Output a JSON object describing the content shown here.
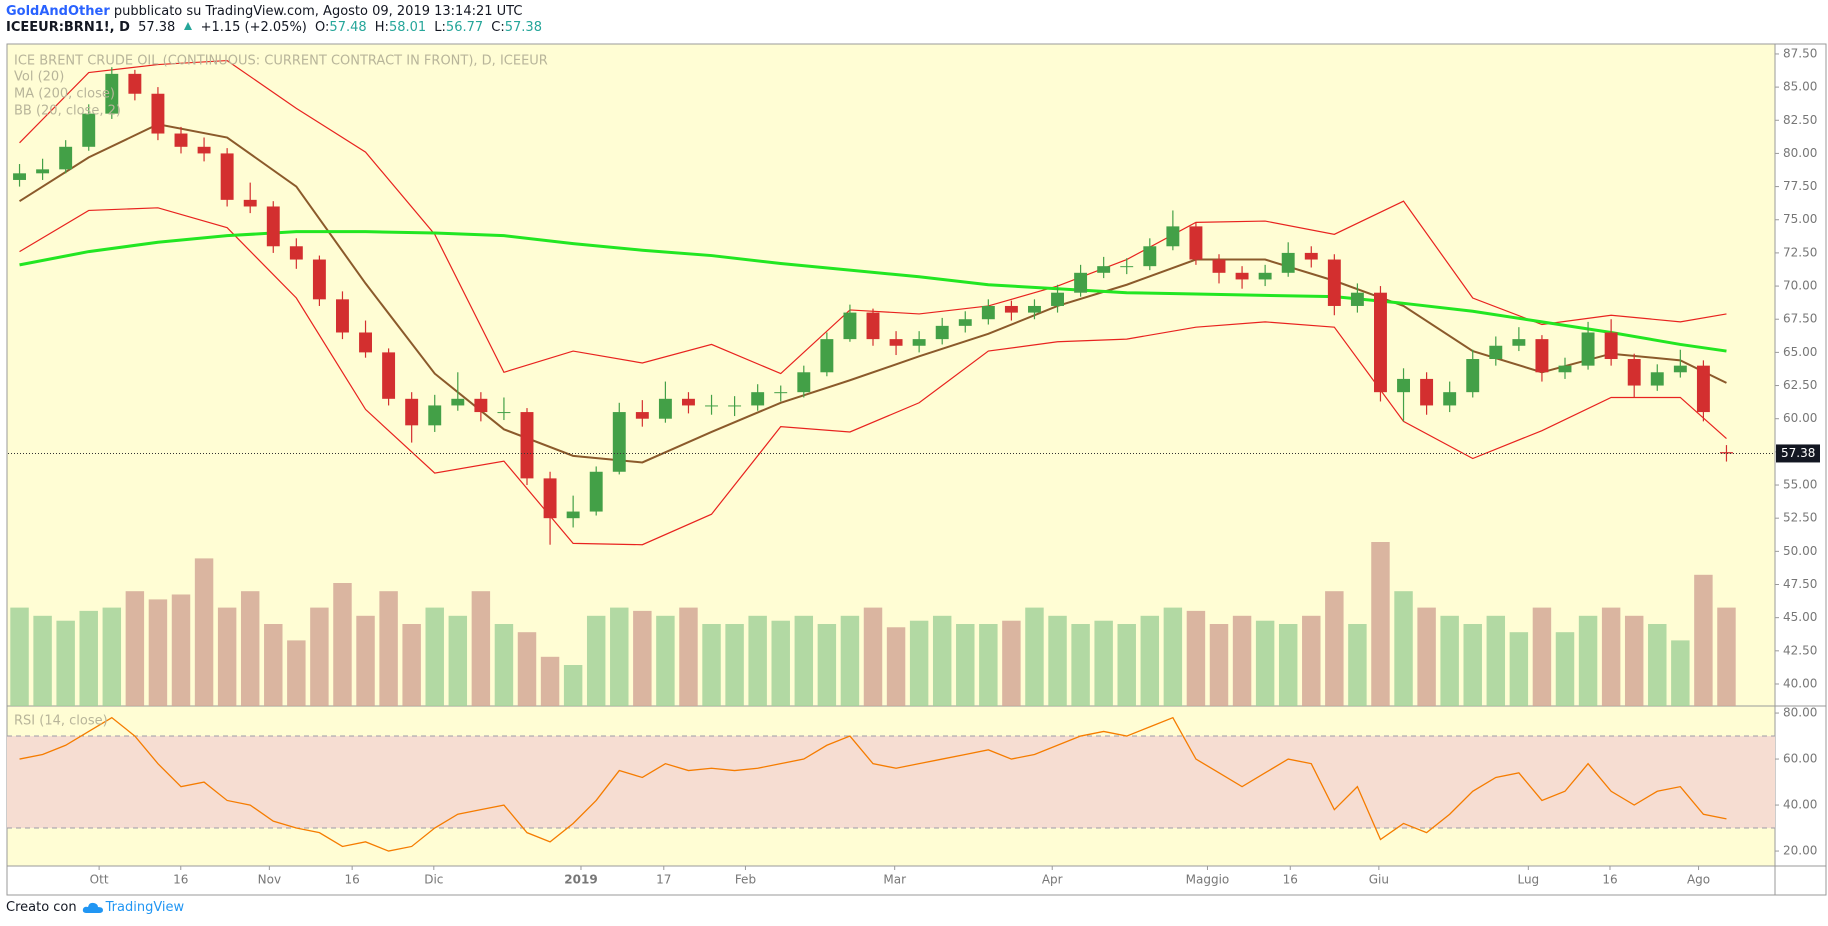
{
  "header": {
    "author": "GoldAndOther",
    "published": "pubblicato su TradingView.com, Agosto 09, 2019 13:14:21 UTC",
    "symbol": "ICEEUR:BRN1!, D",
    "last": "57.38",
    "change": "+1.15 (+2.05%)",
    "open_label": "O:",
    "open": "57.48",
    "high_label": "H:",
    "high": "58.01",
    "low_label": "L:",
    "low": "56.77",
    "close_label": "C:",
    "close": "57.38"
  },
  "chart_data": [
    {
      "type": "candlestick",
      "title": "ICE BRENT CRUDE OIL (CONTINUOUS: CURRENT CONTRACT IN FRONT), D, ICEEUR",
      "xlim": [
        -0.5,
        74.5
      ],
      "ylim": [
        38.34,
        88.25
      ],
      "yticks": [
        {
          "value": 40,
          "label": "40.00"
        },
        {
          "value": 42.5,
          "label": "42.50"
        },
        {
          "value": 45,
          "label": "45.00"
        },
        {
          "value": 47.5,
          "label": "47.50"
        },
        {
          "value": 50,
          "label": "50.00"
        },
        {
          "value": 52.5,
          "label": "52.50"
        },
        {
          "value": 55,
          "label": "55.00"
        },
        {
          "value": 57.5,
          "label": "57.50"
        },
        {
          "value": 60,
          "label": "60.00"
        },
        {
          "value": 62.5,
          "label": "62.50"
        },
        {
          "value": 65,
          "label": "65.00"
        },
        {
          "value": 67.5,
          "label": "67.50"
        },
        {
          "value": 70,
          "label": "70.00"
        },
        {
          "value": 72.5,
          "label": "72.50"
        },
        {
          "value": 75,
          "label": "75.00"
        },
        {
          "value": 77.5,
          "label": "77.50"
        },
        {
          "value": 80,
          "label": "80.00"
        },
        {
          "value": 82.5,
          "label": "82.50"
        },
        {
          "value": 85,
          "label": "85.00"
        },
        {
          "value": 87.5,
          "label": "87.50"
        }
      ],
      "up_color": "#43a047",
      "down_color": "#d32f2f",
      "candles": [
        [
          78.0,
          79.2,
          77.5,
          78.5
        ],
        [
          78.5,
          79.6,
          78.0,
          78.8
        ],
        [
          78.8,
          81.0,
          78.5,
          80.5
        ],
        [
          80.5,
          83.7,
          80.2,
          83.0
        ],
        [
          83.0,
          86.5,
          82.6,
          86.0
        ],
        [
          86.0,
          86.3,
          84.0,
          84.5
        ],
        [
          84.5,
          85.0,
          81.0,
          81.5
        ],
        [
          81.5,
          82.0,
          80.0,
          80.5
        ],
        [
          80.5,
          81.2,
          79.4,
          80.0
        ],
        [
          80.0,
          80.4,
          76.0,
          76.5
        ],
        [
          76.5,
          77.8,
          75.5,
          76.0
        ],
        [
          76.0,
          76.4,
          72.5,
          73.0
        ],
        [
          73.0,
          73.6,
          71.3,
          72.0
        ],
        [
          72.0,
          72.3,
          68.5,
          69.0
        ],
        [
          69.0,
          69.6,
          66.0,
          66.5
        ],
        [
          66.5,
          67.4,
          64.6,
          65.0
        ],
        [
          65.0,
          65.3,
          61.0,
          61.5
        ],
        [
          61.5,
          62.0,
          58.2,
          59.5
        ],
        [
          59.5,
          61.8,
          59.0,
          61.0
        ],
        [
          61.0,
          63.5,
          60.6,
          61.5
        ],
        [
          61.5,
          62.0,
          59.8,
          60.5
        ],
        [
          60.5,
          61.6,
          59.9,
          60.5
        ],
        [
          60.5,
          60.8,
          55.0,
          55.5
        ],
        [
          55.5,
          56.0,
          50.5,
          52.5
        ],
        [
          52.5,
          54.2,
          51.8,
          53.0
        ],
        [
          53.0,
          56.4,
          52.7,
          56.0
        ],
        [
          56.0,
          61.2,
          55.8,
          60.5
        ],
        [
          60.5,
          61.4,
          59.4,
          60.0
        ],
        [
          60.0,
          62.8,
          59.7,
          61.5
        ],
        [
          61.5,
          62.0,
          60.4,
          61.0
        ],
        [
          61.0,
          61.8,
          60.3,
          61.0
        ],
        [
          61.0,
          61.7,
          60.2,
          61.0
        ],
        [
          61.0,
          62.6,
          60.6,
          62.0
        ],
        [
          62.0,
          62.5,
          61.3,
          62.0
        ],
        [
          62.0,
          64.0,
          61.6,
          63.5
        ],
        [
          63.5,
          66.5,
          63.2,
          66.0
        ],
        [
          66.0,
          68.6,
          65.8,
          68.0
        ],
        [
          68.0,
          68.3,
          65.5,
          66.0
        ],
        [
          66.0,
          66.6,
          64.8,
          65.5
        ],
        [
          65.5,
          66.6,
          65.0,
          66.0
        ],
        [
          66.0,
          67.6,
          65.6,
          67.0
        ],
        [
          67.0,
          68.1,
          66.5,
          67.5
        ],
        [
          67.5,
          69.0,
          67.1,
          68.5
        ],
        [
          68.5,
          68.9,
          67.4,
          68.0
        ],
        [
          68.0,
          69.0,
          67.5,
          68.5
        ],
        [
          68.5,
          70.1,
          68.0,
          69.5
        ],
        [
          69.5,
          71.6,
          69.2,
          71.0
        ],
        [
          71.0,
          72.2,
          70.6,
          71.5
        ],
        [
          71.5,
          72.1,
          70.9,
          71.5
        ],
        [
          71.5,
          73.6,
          71.2,
          73.0
        ],
        [
          73.0,
          75.7,
          72.7,
          74.5
        ],
        [
          74.5,
          74.8,
          71.6,
          72.0
        ],
        [
          72.0,
          72.4,
          70.2,
          71.0
        ],
        [
          71.0,
          71.5,
          69.8,
          70.5
        ],
        [
          70.5,
          71.6,
          70.0,
          71.0
        ],
        [
          71.0,
          73.3,
          70.7,
          72.5
        ],
        [
          72.5,
          73.0,
          71.4,
          72.0
        ],
        [
          72.0,
          72.4,
          67.8,
          68.5
        ],
        [
          68.5,
          70.2,
          68.0,
          69.5
        ],
        [
          69.5,
          70.0,
          61.3,
          62.0
        ],
        [
          62.0,
          63.8,
          59.8,
          63.0
        ],
        [
          63.0,
          63.5,
          60.3,
          61.0
        ],
        [
          61.0,
          62.8,
          60.5,
          62.0
        ],
        [
          62.0,
          65.2,
          61.6,
          64.5
        ],
        [
          64.5,
          66.2,
          64.0,
          65.5
        ],
        [
          65.5,
          66.9,
          65.1,
          66.0
        ],
        [
          66.0,
          66.3,
          62.8,
          63.5
        ],
        [
          63.5,
          64.6,
          63.0,
          64.0
        ],
        [
          64.0,
          67.3,
          63.7,
          66.5
        ],
        [
          66.5,
          67.5,
          64.0,
          64.5
        ],
        [
          64.5,
          64.9,
          61.6,
          62.5
        ],
        [
          62.5,
          64.1,
          62.1,
          63.5
        ],
        [
          63.5,
          65.2,
          63.1,
          64.0
        ],
        [
          64.0,
          64.4,
          59.8,
          60.5
        ],
        [
          57.48,
          58.01,
          56.77,
          57.38
        ]
      ],
      "last_price": {
        "value": 57.38,
        "label": "57.38"
      },
      "volume": {
        "name": "Vol (20)",
        "vlim": [
          0,
          100
        ],
        "up_color": "#a5d29a",
        "down_color": "#d3a896",
        "values": [
          60,
          55,
          52,
          58,
          60,
          70,
          65,
          68,
          90,
          60,
          70,
          50,
          40,
          60,
          75,
          55,
          70,
          50,
          60,
          55,
          70,
          50,
          45,
          30,
          25,
          55,
          60,
          58,
          55,
          60,
          50,
          50,
          55,
          52,
          55,
          50,
          55,
          60,
          48,
          52,
          55,
          50,
          50,
          52,
          60,
          55,
          50,
          52,
          50,
          55,
          60,
          58,
          50,
          55,
          52,
          50,
          55,
          70,
          50,
          100,
          70,
          60,
          55,
          50,
          55,
          45,
          60,
          45,
          55,
          60,
          55,
          50,
          40,
          80,
          60
        ]
      },
      "ma": {
        "name": "MA (200, close)",
        "color": "#22e622",
        "x": [
          0,
          3,
          6,
          9,
          12,
          15,
          18,
          21,
          24,
          27,
          30,
          33,
          36,
          39,
          42,
          45,
          48,
          51,
          54,
          57,
          60,
          63,
          66,
          69,
          72,
          74
        ],
        "values": [
          71.6,
          72.6,
          73.3,
          73.8,
          74.1,
          74.1,
          74.0,
          73.8,
          73.2,
          72.7,
          72.3,
          71.7,
          71.2,
          70.7,
          70.1,
          69.8,
          69.5,
          69.4,
          69.3,
          69.2,
          68.7,
          68.1,
          67.3,
          66.5,
          65.6,
          65.1
        ]
      },
      "bb": {
        "name": "BB (20, close, 2)",
        "basis_color": "#8b5a2b",
        "band_color": "#e8231f",
        "x": [
          0,
          3,
          6,
          9,
          12,
          15,
          18,
          21,
          24,
          27,
          30,
          33,
          36,
          39,
          42,
          45,
          48,
          51,
          54,
          57,
          60,
          63,
          66,
          69,
          72,
          74
        ],
        "basis": [
          76.4,
          79.7,
          82.2,
          81.2,
          77.5,
          70.2,
          63.4,
          59.2,
          57.2,
          56.7,
          59.0,
          61.2,
          62.9,
          64.7,
          66.4,
          68.5,
          70.1,
          72.0,
          72.0,
          70.4,
          68.5,
          65.1,
          63.5,
          64.9,
          64.4,
          62.7
        ],
        "upper": [
          80.8,
          86.1,
          86.7,
          87.0,
          83.4,
          80.1,
          73.9,
          63.5,
          65.1,
          64.2,
          65.6,
          63.4,
          68.2,
          67.9,
          68.5,
          70.0,
          72.0,
          74.8,
          74.9,
          73.9,
          76.4,
          69.1,
          67.1,
          67.8,
          67.3,
          67.9
        ],
        "lower": [
          72.6,
          75.7,
          75.9,
          74.4,
          69.1,
          60.7,
          55.9,
          56.8,
          50.6,
          50.5,
          52.8,
          59.4,
          59.0,
          61.2,
          65.1,
          65.8,
          66.0,
          66.9,
          67.3,
          66.9,
          59.8,
          57.0,
          59.1,
          61.6,
          61.6,
          58.5
        ]
      }
    },
    {
      "type": "line",
      "title": "RSI (14, close)",
      "color": "#f57c00",
      "xlim": [
        -0.5,
        74.5
      ],
      "xticks": [
        {
          "value": 3.45,
          "label": "Ott"
        },
        {
          "value": 6.99,
          "label": "16"
        },
        {
          "value": 10.83,
          "label": "Nov"
        },
        {
          "value": 14.42,
          "label": "16"
        },
        {
          "value": 17.96,
          "label": "Dic"
        },
        {
          "value": 24.34,
          "label": "2019"
        },
        {
          "value": 27.93,
          "label": "17"
        },
        {
          "value": 31.47,
          "label": "Feb"
        },
        {
          "value": 37.94,
          "label": "Mar"
        },
        {
          "value": 44.77,
          "label": "Apr"
        },
        {
          "value": 51.5,
          "label": "Maggio"
        },
        {
          "value": 55.09,
          "label": "16"
        },
        {
          "value": 58.93,
          "label": "Giu"
        },
        {
          "value": 65.41,
          "label": "Lug"
        },
        {
          "value": 68.95,
          "label": "16"
        },
        {
          "value": 72.79,
          "label": "Ago"
        }
      ],
      "ylim": [
        13.5,
        82.2
      ],
      "yticks": [
        {
          "value": 20,
          "label": "20.00"
        },
        {
          "value": 40,
          "label": "40.00"
        },
        {
          "value": 60,
          "label": "60.00"
        },
        {
          "value": 80,
          "label": "80.00"
        }
      ],
      "band": [
        30,
        70
      ],
      "band_color": "#f6ddd2",
      "values": [
        60,
        62,
        66,
        72,
        78,
        70,
        58,
        48,
        50,
        42,
        40,
        33,
        30,
        28,
        22,
        24,
        20,
        22,
        30,
        36,
        38,
        40,
        28,
        24,
        32,
        42,
        55,
        52,
        58,
        55,
        56,
        55,
        56,
        58,
        60,
        66,
        70,
        58,
        56,
        58,
        60,
        62,
        64,
        60,
        62,
        66,
        70,
        72,
        70,
        74,
        78,
        60,
        54,
        48,
        54,
        60,
        58,
        38,
        48,
        25,
        32,
        28,
        36,
        46,
        52,
        54,
        42,
        46,
        58,
        46,
        40,
        46,
        48,
        36,
        34
      ]
    }
  ],
  "footer": {
    "made_with": "Creato con",
    "brand": "TradingView"
  }
}
